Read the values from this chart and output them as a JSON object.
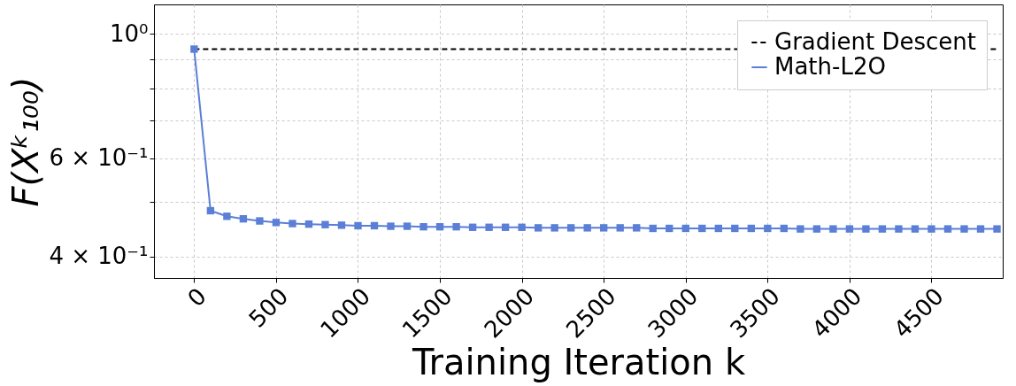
{
  "chart_data": {
    "type": "line",
    "xlabel": "Training Iteration k",
    "ylabel": "F(Xᵏ₁₀₀)",
    "log": "y",
    "grid": true,
    "legend": "top right",
    "xlim": [
      -245,
      4935
    ],
    "ylim": [
      0.366,
      1.13
    ],
    "xticks": [
      0,
      500,
      1000,
      1500,
      2000,
      2500,
      3000,
      3500,
      4000,
      4500
    ],
    "yticks": [
      {
        "value": 0.4,
        "label": "4 × 10⁻¹"
      },
      {
        "value": 0.5,
        "label": null
      },
      {
        "value": 0.6,
        "label": "6 × 10⁻¹"
      },
      {
        "value": 0.7,
        "label": null
      },
      {
        "value": 0.8,
        "label": null
      },
      {
        "value": 0.9,
        "label": null
      },
      {
        "value": 1,
        "label": "10⁰"
      }
    ],
    "series": [
      {
        "name": "Gradient Descent",
        "color": "#000000",
        "line_style": "dashed",
        "marker": "none",
        "x": [
          0,
          4900
        ],
        "values": [
          0.94,
          0.94
        ]
      },
      {
        "name": "Math-L2O",
        "color": "#5b7fd6",
        "line_style": "solid",
        "marker": "square",
        "x": [
          0,
          100,
          200,
          300,
          400,
          500,
          600,
          700,
          800,
          900,
          1000,
          1100,
          1200,
          1300,
          1400,
          1500,
          1600,
          1700,
          1800,
          1900,
          2000,
          2100,
          2200,
          2300,
          2400,
          2500,
          2600,
          2700,
          2800,
          2900,
          3000,
          3100,
          3200,
          3300,
          3400,
          3500,
          3600,
          3700,
          3800,
          3900,
          4000,
          4100,
          4200,
          4300,
          4400,
          4500,
          4600,
          4700,
          4800,
          4900
        ],
        "values": [
          0.94,
          0.483,
          0.472,
          0.467,
          0.463,
          0.46,
          0.458,
          0.457,
          0.456,
          0.455,
          0.454,
          0.454,
          0.453,
          0.453,
          0.452,
          0.452,
          0.452,
          0.451,
          0.451,
          0.451,
          0.451,
          0.45,
          0.45,
          0.45,
          0.45,
          0.45,
          0.45,
          0.45,
          0.449,
          0.449,
          0.449,
          0.449,
          0.449,
          0.449,
          0.449,
          0.449,
          0.449,
          0.448,
          0.448,
          0.448,
          0.448,
          0.448,
          0.448,
          0.448,
          0.448,
          0.448,
          0.448,
          0.448,
          0.448,
          0.448
        ]
      }
    ]
  }
}
